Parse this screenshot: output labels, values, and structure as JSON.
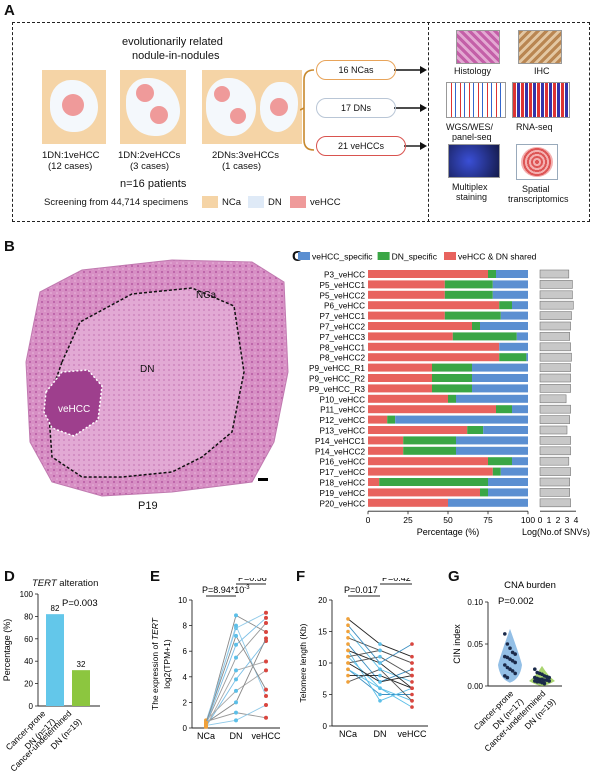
{
  "panel_labels": {
    "a": "A",
    "b": "B",
    "c": "C",
    "d": "D",
    "e": "E",
    "f": "F",
    "g": "G"
  },
  "panelA": {
    "title_line1": "evolutionarily related",
    "title_line2": "nodule-in-nodules",
    "groups": [
      {
        "label": "1DN:1veHCC",
        "cases": "(12 cases)"
      },
      {
        "label": "1DN:2veHCCs",
        "cases": "(3 cases)"
      },
      {
        "label": "2DNs:3veHCCs",
        "cases": "(1 cases)"
      }
    ],
    "patients": "n=16 patients",
    "screening": "Screening from 44,714 specimens",
    "legend": [
      {
        "label": "NCa",
        "color": "#f5d4a6"
      },
      {
        "label": "DN",
        "color": "#dfeaf7"
      },
      {
        "label": "veHCC",
        "color": "#ef9a9a"
      }
    ],
    "pills": [
      {
        "label": "16 NCas",
        "border": "#e8a45a"
      },
      {
        "label": "17 DNs",
        "border": "#b9c6d6"
      },
      {
        "label": "21 veHCCs",
        "border": "#d9534f"
      }
    ],
    "methods": [
      "Histology",
      "IHC",
      "WGS/WES/",
      "panel-seq",
      "RNA-seq",
      "Multiplex",
      "staining",
      "Spatial",
      "transcriptomics"
    ]
  },
  "panelB": {
    "ncalabel": "NCa",
    "dnlabel": "DN",
    "hcclabel": "veHCC",
    "sample": "P19"
  },
  "panelC": {
    "legend": [
      {
        "label": "veHCC_specific",
        "color": "#5b8fd1"
      },
      {
        "label": "DN_specific",
        "color": "#3aa645"
      },
      {
        "label": "veHCC & DN shared",
        "color": "#e8635e"
      }
    ],
    "xlabel": "Percentage (%)",
    "xlabel2": "Log(No.of SNVs)",
    "xticks": [
      "0",
      "25",
      "50",
      "75",
      "100"
    ],
    "xticks2": [
      "0",
      "1",
      "2",
      "3",
      "4"
    ]
  },
  "chart_data": [
    {
      "type": "bar",
      "orientation": "horizontal-stacked",
      "categories": [
        "P3_veHCC",
        "P5_veHCC1",
        "P5_veHCC2",
        "P6_veHCC",
        "P7_veHCC1",
        "P7_veHCC2",
        "P7_veHCC3",
        "P8_veHCC1",
        "P8_veHCC2",
        "P9_veHCC_R1",
        "P9_veHCC_R2",
        "P9_veHCC_R3",
        "P10_veHCC",
        "P11_veHCC",
        "P12_veHCC",
        "P13_veHCC",
        "P14_veHCC1",
        "P14_veHCC2",
        "P16_veHCC",
        "P17_veHCC",
        "P18_veHCC",
        "P19_veHCC",
        "P20_veHCC"
      ],
      "series": [
        {
          "name": "veHCC & DN shared",
          "values": [
            75,
            48,
            48,
            82,
            48,
            65,
            53,
            82,
            82,
            40,
            40,
            40,
            50,
            80,
            12,
            62,
            22,
            22,
            75,
            78,
            7,
            70,
            50
          ]
        },
        {
          "name": "DN_specific",
          "values": [
            5,
            30,
            30,
            8,
            35,
            5,
            40,
            0,
            17,
            25,
            25,
            25,
            5,
            10,
            5,
            10,
            33,
            33,
            15,
            5,
            68,
            5,
            0
          ]
        },
        {
          "name": "veHCC_specific",
          "values": [
            20,
            22,
            22,
            10,
            17,
            30,
            7,
            18,
            1,
            35,
            35,
            35,
            45,
            10,
            83,
            28,
            45,
            45,
            10,
            17,
            25,
            25,
            50
          ]
        }
      ],
      "xlabel": "Percentage (%)",
      "xlim": [
        0,
        100
      ]
    },
    {
      "type": "bar",
      "orientation": "horizontal",
      "categories": [
        "P3_veHCC",
        "P5_veHCC1",
        "P5_veHCC2",
        "P6_veHCC",
        "P7_veHCC1",
        "P7_veHCC2",
        "P7_veHCC3",
        "P8_veHCC1",
        "P8_veHCC2",
        "P9_veHCC_R1",
        "P9_veHCC_R2",
        "P9_veHCC_R3",
        "P10_veHCC",
        "P11_veHCC",
        "P12_veHCC",
        "P13_veHCC",
        "P14_veHCC1",
        "P14_veHCC2",
        "P16_veHCC",
        "P17_veHCC",
        "P18_veHCC",
        "P19_veHCC",
        "P20_veHCC"
      ],
      "values": [
        3.2,
        3.6,
        3.6,
        3.7,
        3.5,
        3.4,
        3.3,
        3.4,
        3.5,
        3.4,
        3.4,
        3.4,
        2.9,
        3.4,
        3.3,
        3.0,
        3.4,
        3.4,
        3.2,
        3.4,
        3.3,
        3.3,
        3.4
      ],
      "xlabel": "Log(No.of SNVs)",
      "xlim": [
        0,
        4
      ]
    },
    {
      "type": "bar",
      "title": "TERT alteration",
      "categories": [
        "Cancer-prone DN (n=17)",
        "Cancer-undetermined DN (n=19)"
      ],
      "values": [
        82,
        32
      ],
      "colors": [
        "#63c7ea",
        "#8cc63f"
      ],
      "ylabel": "Percentage (%)",
      "ylim": [
        0,
        100
      ],
      "yticks": [
        "0",
        "20",
        "40",
        "60",
        "80",
        "100"
      ],
      "pvalue": "P=0.003"
    },
    {
      "type": "scatter",
      "categories": [
        "NCa",
        "DN",
        "veHCC"
      ],
      "ylabel": "The expression of TERT log2(TPM+1)",
      "ylim": [
        0,
        10
      ],
      "yticks": [
        "0",
        "2",
        "4",
        "6",
        "8",
        "10"
      ],
      "p1": "P=8.94*10",
      "p1_exp": "-3",
      "p2": "P=0.58",
      "pairs": [
        [
          0.2,
          8.8,
          7.5
        ],
        [
          0.5,
          7.8,
          9.0
        ],
        [
          0.3,
          5.5,
          8.2
        ],
        [
          0.1,
          3.8,
          6.8
        ],
        [
          0.6,
          2.9,
          4.5
        ],
        [
          0.4,
          2.0,
          7.0
        ],
        [
          0.2,
          8.0,
          2.5
        ],
        [
          0.5,
          1.2,
          0.8
        ],
        [
          0.3,
          6.5,
          8.6
        ],
        [
          0.1,
          4.5,
          5.2
        ],
        [
          0.4,
          7.2,
          3.0
        ],
        [
          0.2,
          0.6,
          1.8
        ]
      ]
    },
    {
      "type": "scatter",
      "categories": [
        "NCa",
        "DN",
        "veHCC"
      ],
      "ylabel": "Telomere length (Kb)",
      "ylim": [
        0,
        20
      ],
      "yticks": [
        "0",
        "5",
        "10",
        "15",
        "20"
      ],
      "p1": "P=0.017",
      "p2": "P=0.42",
      "pairs": [
        [
          17,
          13,
          11
        ],
        [
          15,
          9,
          7
        ],
        [
          14,
          12,
          10
        ],
        [
          13,
          7,
          9
        ],
        [
          12,
          10,
          6
        ],
        [
          11,
          6,
          4
        ],
        [
          10,
          11,
          8
        ],
        [
          9,
          5,
          5
        ],
        [
          8,
          8,
          6
        ],
        [
          12,
          4,
          6
        ],
        [
          7,
          9,
          4
        ],
        [
          16,
          10,
          13
        ],
        [
          10,
          7,
          8
        ],
        [
          9,
          6,
          3
        ],
        [
          11,
          12,
          10
        ]
      ]
    },
    {
      "type": "scatter",
      "title": "CNA burden",
      "categories": [
        "Cancer-prone DN (n=17)",
        "Cancer-undetermined DN (n=19)"
      ],
      "ylabel": "CIN index",
      "ylim": [
        0,
        0.1
      ],
      "yticks": [
        "0.00",
        "0.05",
        "0.10"
      ],
      "pvalue": "P=0.002",
      "group1": [
        0.062,
        0.05,
        0.045,
        0.04,
        0.038,
        0.035,
        0.034,
        0.032,
        0.03,
        0.028,
        0.025,
        0.022,
        0.02,
        0.018,
        0.015,
        0.012,
        0.01
      ],
      "group2": [
        0.02,
        0.016,
        0.015,
        0.014,
        0.012,
        0.011,
        0.01,
        0.01,
        0.009,
        0.008,
        0.008,
        0.007,
        0.007,
        0.006,
        0.006,
        0.005,
        0.005,
        0.004,
        0.003
      ]
    }
  ],
  "panelD": {
    "title_italic": "TERT",
    "title_rest": " alteration",
    "ylabel": "Percentage (%)",
    "bar1_value": "82",
    "bar2_value": "32",
    "pvalue": "P=0.003",
    "cat1_a": "Cancer-prone",
    "cat1_b": "DN (n=17)",
    "cat2_a": "Cancer-undetermined",
    "cat2_b": "DN (n=19)"
  },
  "panelE": {
    "ylabel_a": "The expression of ",
    "ylabel_italic": "TERT",
    "ylabel_b": "log2(TPM+1)"
  },
  "panelG": {
    "title": "CNA burden",
    "ylabel": "CIN index",
    "cat1_a": "Cancer-prone",
    "cat1_b": "DN (n=17)",
    "cat2_a": "Cancer-undetermined",
    "cat2_b": "DN (n=19)"
  }
}
